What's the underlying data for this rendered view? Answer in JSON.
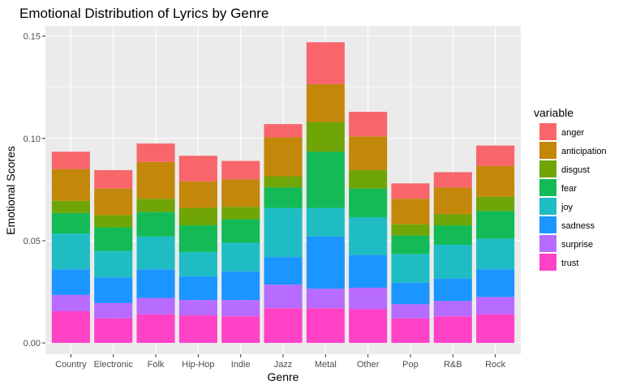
{
  "chart_data": {
    "type": "bar",
    "stacked": true,
    "title": "Emotional Distribution of Lyrics by Genre",
    "xlabel": "Genre",
    "ylabel": "Emotional Scores",
    "ylim": [
      -0.0055,
      0.155
    ],
    "yticks": [
      0.0,
      0.05,
      0.1,
      0.15
    ],
    "ytick_labels": [
      "0.00",
      "0.05",
      "0.10",
      "0.15"
    ],
    "grid": true,
    "legend": {
      "title": "variable",
      "position": "right"
    },
    "categories": [
      "Country",
      "Electronic",
      "Folk",
      "Hip-Hop",
      "Indie",
      "Jazz",
      "Metal",
      "Other",
      "Pop",
      "R&B",
      "Rock"
    ],
    "series": [
      {
        "name": "trust",
        "color": "#FF41C6",
        "values": [
          0.0155,
          0.012,
          0.014,
          0.0135,
          0.013,
          0.017,
          0.017,
          0.0165,
          0.012,
          0.013,
          0.014
        ]
      },
      {
        "name": "surprise",
        "color": "#B76BFF",
        "values": [
          0.008,
          0.0075,
          0.008,
          0.0075,
          0.008,
          0.0115,
          0.0095,
          0.0105,
          0.007,
          0.0075,
          0.0085
        ]
      },
      {
        "name": "sadness",
        "color": "#1B95FF",
        "values": [
          0.0125,
          0.0125,
          0.014,
          0.0115,
          0.014,
          0.0135,
          0.0255,
          0.016,
          0.0105,
          0.011,
          0.0135
        ]
      },
      {
        "name": "joy",
        "color": "#1FBDC3",
        "values": [
          0.0175,
          0.013,
          0.016,
          0.012,
          0.014,
          0.024,
          0.014,
          0.0185,
          0.014,
          0.0165,
          0.015
        ]
      },
      {
        "name": "fear",
        "color": "#13BA55",
        "values": [
          0.01,
          0.0115,
          0.012,
          0.013,
          0.0115,
          0.01,
          0.0275,
          0.014,
          0.009,
          0.0095,
          0.0135
        ]
      },
      {
        "name": "disgust",
        "color": "#6FA507",
        "values": [
          0.006,
          0.006,
          0.0065,
          0.0085,
          0.006,
          0.0055,
          0.0145,
          0.009,
          0.0055,
          0.0055,
          0.007
        ]
      },
      {
        "name": "anticipation",
        "color": "#C3870A",
        "values": [
          0.0155,
          0.013,
          0.018,
          0.013,
          0.0135,
          0.019,
          0.0185,
          0.0165,
          0.0125,
          0.013,
          0.015
        ]
      },
      {
        "name": "anger",
        "color": "#F8666B",
        "values": [
          0.0085,
          0.009,
          0.009,
          0.0125,
          0.009,
          0.0065,
          0.0205,
          0.012,
          0.0075,
          0.0075,
          0.01
        ]
      }
    ],
    "legend_order": [
      "anger",
      "anticipation",
      "disgust",
      "fear",
      "joy",
      "sadness",
      "surprise",
      "trust"
    ],
    "colors": {
      "panel_background": "#EBEBEB",
      "grid_line": "#FFFFFF"
    }
  }
}
